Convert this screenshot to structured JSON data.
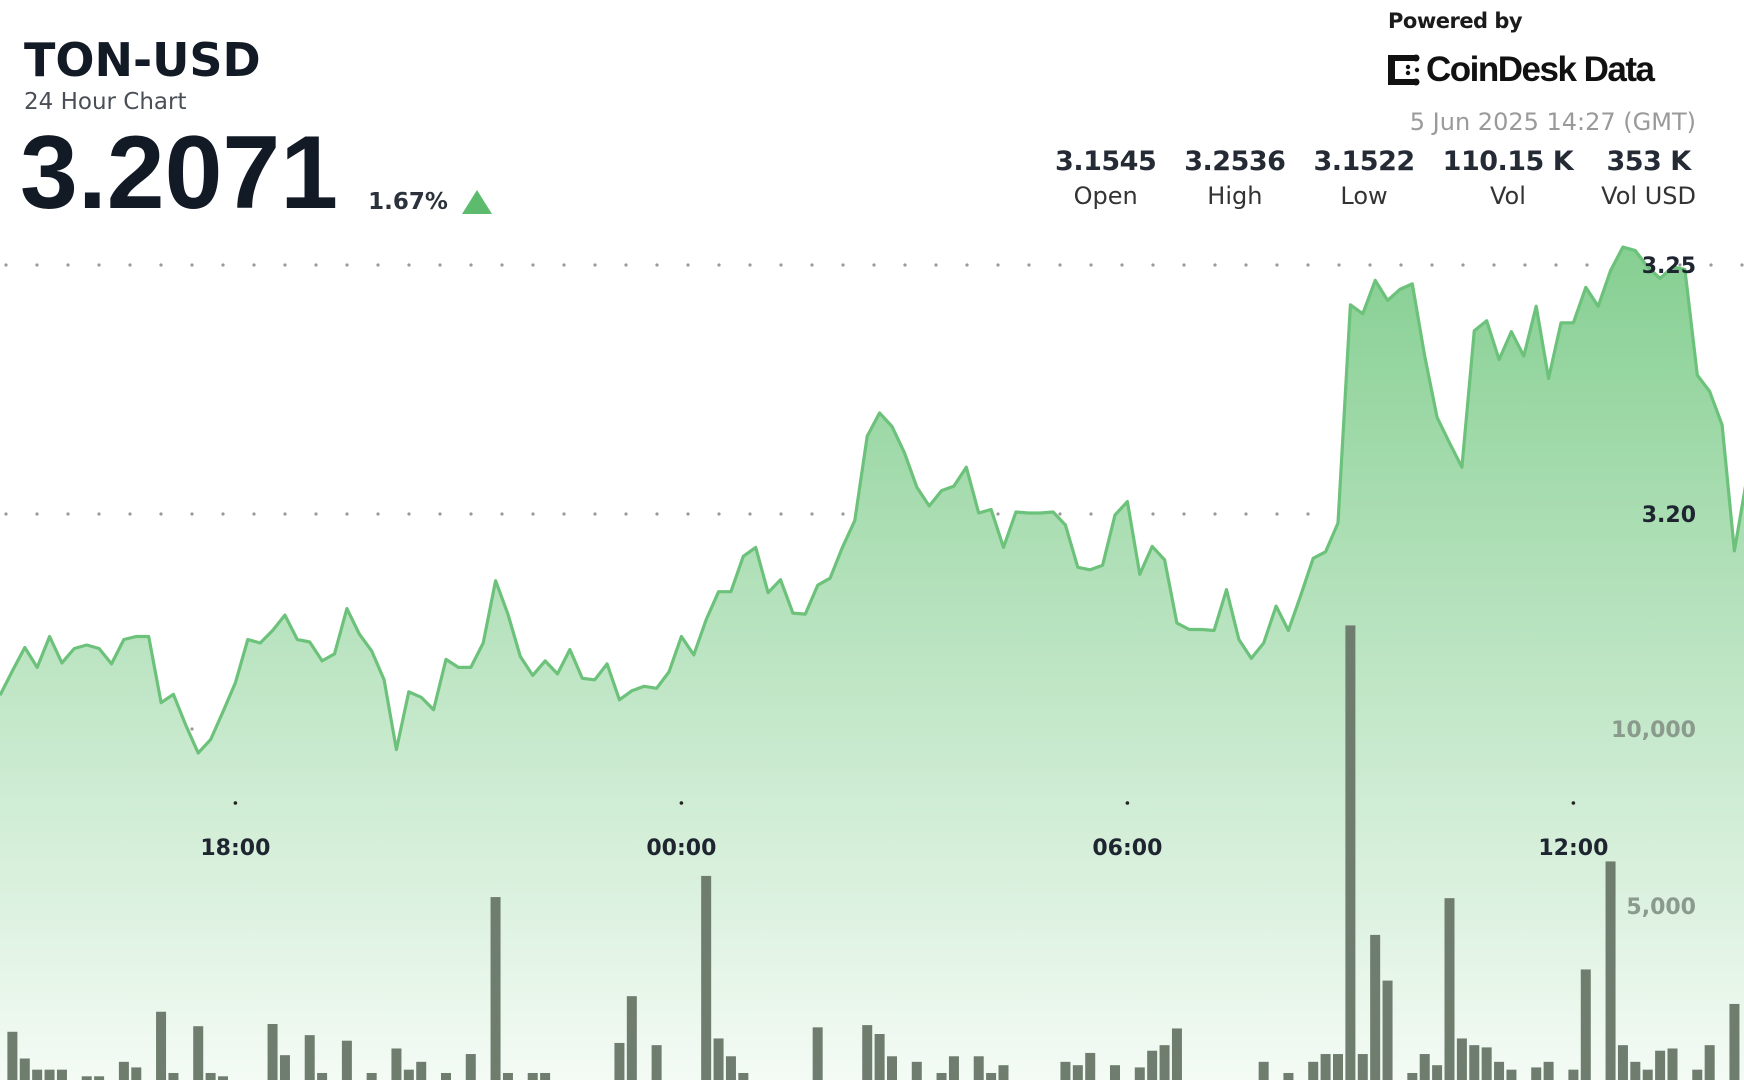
{
  "header": {
    "symbol": "TON-USD",
    "subtitle": "24 Hour Chart",
    "price": "3.2071",
    "change_pct": "1.67%",
    "change_direction_icon": "triangle-up-icon",
    "powered_by": "Powered by",
    "brand": "CoinDesk Data",
    "timestamp": "5 Jun 2025 14:27 (GMT)"
  },
  "stats": [
    {
      "value": "3.1545",
      "label": "Open"
    },
    {
      "value": "3.2536",
      "label": "High"
    },
    {
      "value": "3.1522",
      "label": "Low"
    },
    {
      "value": "110.15 K",
      "label": "Vol"
    },
    {
      "value": "353 K",
      "label": "Vol USD"
    }
  ],
  "colors": {
    "line": "#6cc27a",
    "area_top": "#86cf92",
    "area_bottom": "#f4fbf5",
    "volume_bar": "#6f7d6f",
    "up": "#5dbb6e"
  },
  "chart_data": {
    "type": "area",
    "grid": "dotted horizontal",
    "price_axis": {
      "ticks": [
        3.25,
        3.2
      ],
      "tick_labels": [
        "3.25",
        "3.20"
      ],
      "range": [
        3.15,
        3.255
      ]
    },
    "volume_axis": {
      "ticks": [
        10000,
        5000
      ],
      "tick_labels": [
        "10,000",
        "5,000"
      ],
      "range": [
        0,
        15000
      ]
    },
    "x_tick_labels": [
      "18:00",
      "00:00",
      "06:00",
      "12:00"
    ],
    "x": [
      "14:50",
      "15:00",
      "15:10",
      "15:20",
      "15:30",
      "15:40",
      "15:50",
      "16:00",
      "16:10",
      "16:20",
      "16:30",
      "16:40",
      "16:50",
      "17:00",
      "17:10",
      "17:20",
      "17:30",
      "17:40",
      "17:50",
      "18:00",
      "18:10",
      "18:20",
      "18:30",
      "18:40",
      "18:50",
      "19:00",
      "19:10",
      "19:20",
      "19:30",
      "19:40",
      "19:50",
      "20:00",
      "20:10",
      "20:20",
      "20:30",
      "20:40",
      "20:50",
      "21:00",
      "21:10",
      "21:20",
      "21:30",
      "21:40",
      "21:50",
      "22:00",
      "22:10",
      "22:20",
      "22:30",
      "22:40",
      "22:50",
      "23:00",
      "23:10",
      "23:20",
      "23:30",
      "23:40",
      "23:50",
      "00:00",
      "00:10",
      "00:20",
      "00:30",
      "00:40",
      "00:50",
      "01:00",
      "01:10",
      "01:20",
      "01:30",
      "01:40",
      "01:50",
      "02:00",
      "02:10",
      "02:20",
      "02:30",
      "02:40",
      "02:50",
      "03:00",
      "03:10",
      "03:20",
      "03:30",
      "03:40",
      "03:50",
      "04:00",
      "04:10",
      "04:20",
      "04:30",
      "04:40",
      "04:50",
      "05:00",
      "05:10",
      "05:20",
      "05:30",
      "05:40",
      "05:50",
      "06:00",
      "06:10",
      "06:20",
      "06:30",
      "06:40",
      "06:50",
      "07:00",
      "07:10",
      "07:20",
      "07:30",
      "07:40",
      "07:50",
      "08:00",
      "08:10",
      "08:20",
      "08:30",
      "08:40",
      "08:50",
      "09:00",
      "09:10",
      "09:20",
      "09:30",
      "09:40",
      "09:50",
      "10:00",
      "10:10",
      "10:20",
      "10:30",
      "10:40",
      "10:50",
      "11:00",
      "11:10",
      "11:20",
      "11:30",
      "11:40",
      "11:50",
      "12:00",
      "12:10",
      "12:20",
      "12:30",
      "12:40",
      "12:50",
      "13:00",
      "13:10",
      "13:20",
      "13:30",
      "13:40",
      "13:50",
      "14:00",
      "14:10",
      "14:20"
    ],
    "series": [
      {
        "kind": "price-area",
        "values": [
          3.1636,
          3.1685,
          3.1732,
          3.1692,
          3.1754,
          3.1701,
          3.173,
          3.1737,
          3.173,
          3.1699,
          3.1748,
          3.1754,
          3.1754,
          3.1621,
          3.1638,
          3.1576,
          3.152,
          3.1547,
          3.1603,
          3.1661,
          3.1748,
          3.1741,
          3.1766,
          3.1797,
          3.1748,
          3.1743,
          3.1705,
          3.1719,
          3.181,
          3.1759,
          3.1725,
          3.1667,
          3.1527,
          3.1643,
          3.1632,
          3.1607,
          3.1708,
          3.1692,
          3.1692,
          3.1741,
          3.1866,
          3.1799,
          3.1714,
          3.1676,
          3.1705,
          3.1679,
          3.1728,
          3.167,
          3.1667,
          3.1699,
          3.1627,
          3.1645,
          3.1654,
          3.165,
          3.1683,
          3.1754,
          3.1717,
          3.1788,
          3.1844,
          3.1844,
          3.1915,
          3.1933,
          3.1842,
          3.1868,
          3.1801,
          3.1799,
          3.1857,
          3.1871,
          3.1933,
          3.1987,
          3.2156,
          3.2203,
          3.2176,
          3.2123,
          3.2054,
          3.2016,
          3.2047,
          3.2056,
          3.2094,
          3.2002,
          3.2009,
          3.1933,
          3.2004,
          3.2002,
          3.2002,
          3.2004,
          3.1978,
          3.1893,
          3.1888,
          3.1897,
          3.1998,
          3.2025,
          3.1879,
          3.1935,
          3.1908,
          3.1781,
          3.1768,
          3.1768,
          3.1766,
          3.1848,
          3.1748,
          3.171,
          3.1741,
          3.1815,
          3.1766,
          3.1837,
          3.1911,
          3.1924,
          3.1982,
          3.242,
          3.2402,
          3.2469,
          3.2429,
          3.2451,
          3.2462,
          3.2317,
          3.2194,
          3.2143,
          3.2094,
          3.2368,
          3.2388,
          3.231,
          3.2366,
          3.2317,
          3.2417,
          3.2272,
          3.2384,
          3.2384,
          3.2455,
          3.2417,
          3.2489,
          3.2536,
          3.2529,
          3.2496,
          3.2473,
          3.2496,
          3.2491,
          3.2279,
          3.2246,
          3.2179,
          3.1926,
          3.2071
        ]
      },
      {
        "kind": "volume-bar",
        "values": [
          80,
          1447,
          692,
          377,
          377,
          377,
          80,
          189,
          189,
          80,
          598,
          440,
          80,
          2013,
          283,
          80,
          1604,
          283,
          189,
          80,
          80,
          80,
          1667,
          786,
          80,
          1352,
          283,
          80,
          1195,
          80,
          283,
          80,
          975,
          377,
          598,
          80,
          283,
          80,
          818,
          80,
          5252,
          283,
          80,
          283,
          283,
          80,
          80,
          80,
          80,
          80,
          1132,
          2453,
          80,
          1069,
          80,
          80,
          80,
          5850,
          1258,
          755,
          283,
          80,
          80,
          80,
          80,
          80,
          1572,
          80,
          80,
          80,
          1635,
          1384,
          755,
          80,
          598,
          80,
          283,
          755,
          80,
          755,
          283,
          503,
          80,
          80,
          80,
          80,
          598,
          503,
          849,
          80,
          503,
          80,
          440,
          912,
          1069,
          1541,
          80,
          80,
          80,
          80,
          80,
          80,
          598,
          80,
          283,
          80,
          598,
          818,
          818,
          12926,
          818,
          4183,
          2893,
          80,
          283,
          818,
          503,
          5221,
          1258,
          1069,
          1006,
          598,
          377,
          80,
          440,
          598,
          80,
          377,
          3208,
          80,
          6259,
          1069,
          598,
          377,
          912,
          975,
          80,
          377,
          1069,
          80,
          2233,
          80
        ]
      }
    ]
  }
}
